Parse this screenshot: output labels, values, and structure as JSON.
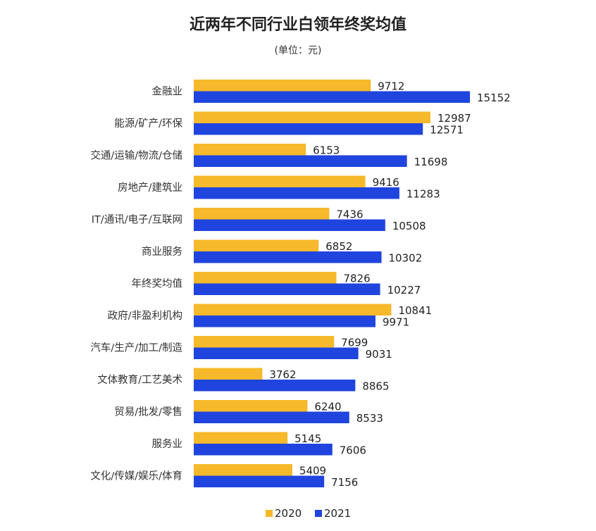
{
  "chart_data": {
    "type": "bar",
    "orientation": "horizontal",
    "title": "近两年不同行业白领年终奖均值",
    "subtitle": "(单位：元)",
    "categories": [
      "金融业",
      "能源/矿产/环保",
      "交通/运输/物流/仓储",
      "房地产/建筑业",
      "IT/通讯/电子/互联网",
      "商业服务",
      "年终奖均值",
      "政府/非盈利机构",
      "汽车/生产/加工/制造",
      "文体教育/工艺美术",
      "贸易/批发/零售",
      "服务业",
      "文化/传媒/娱乐/体育"
    ],
    "series": [
      {
        "name": "2020",
        "color": "#F6B92B",
        "values": [
          9712,
          12987,
          6153,
          9416,
          7436,
          6852,
          7826,
          10841,
          7699,
          3762,
          6240,
          5145,
          5409
        ]
      },
      {
        "name": "2021",
        "color": "#1F45DE",
        "values": [
          15152,
          12571,
          11698,
          11283,
          10508,
          10302,
          10227,
          9971,
          9031,
          8865,
          8533,
          7606,
          7156
        ]
      }
    ],
    "xlim": [
      0,
      15152
    ],
    "grid": false,
    "legend": "bottom"
  }
}
